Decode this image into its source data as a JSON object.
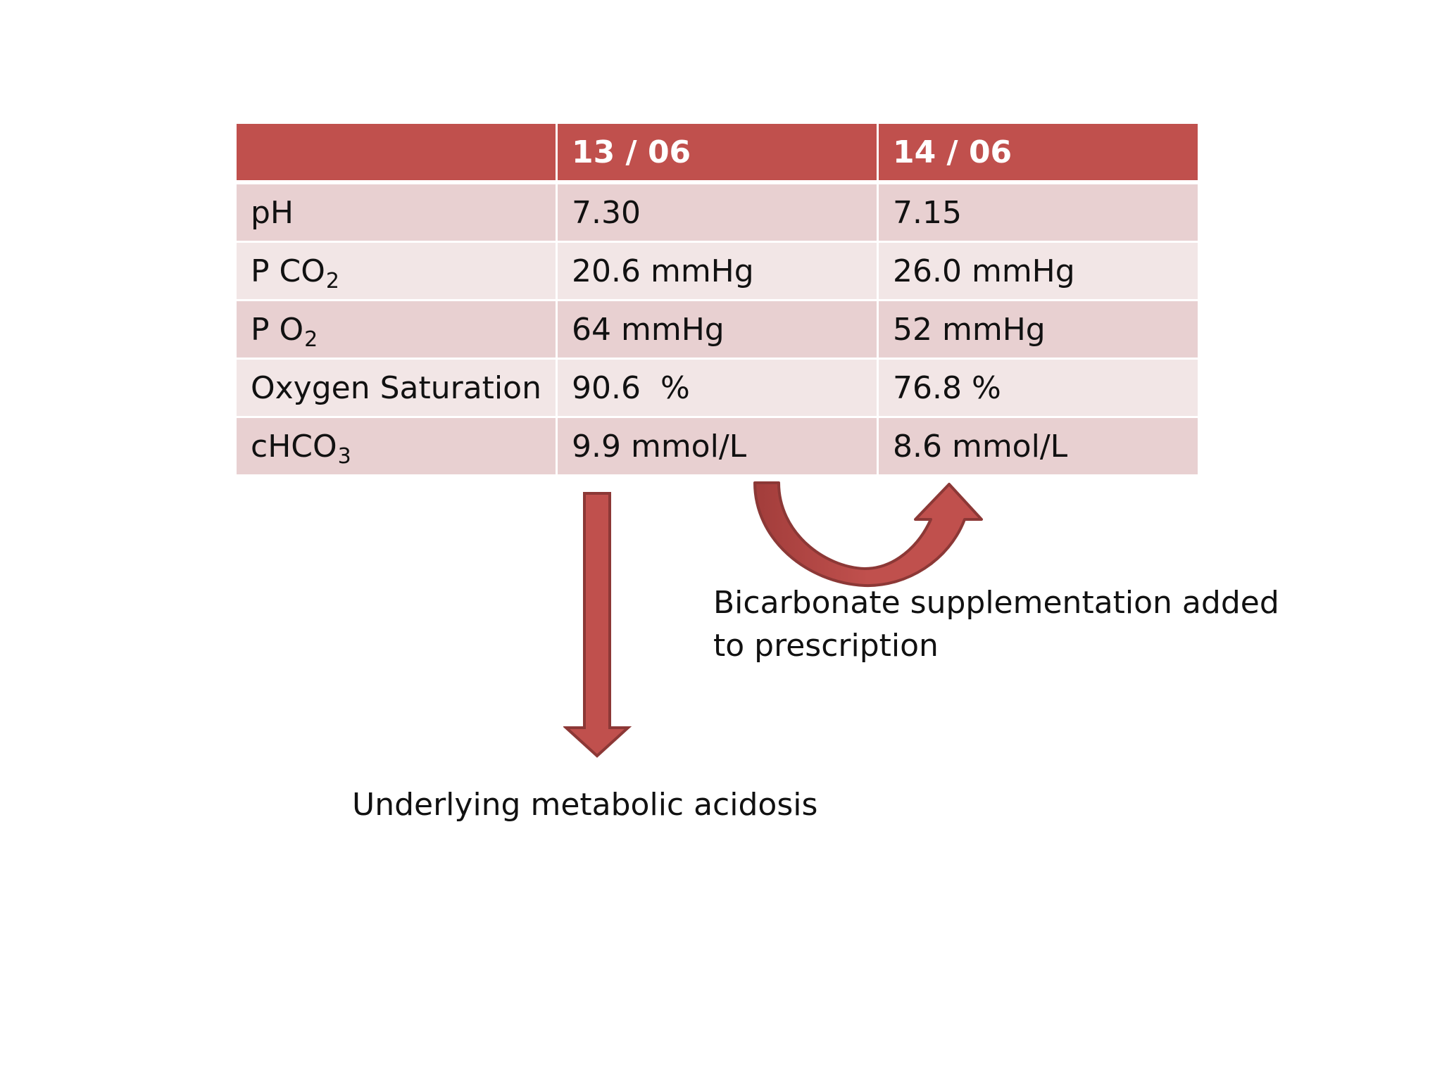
{
  "table": {
    "header": {
      "col0": "",
      "col1": "13 / 06",
      "col2": "14 / 06"
    },
    "rows": [
      {
        "label_main": "pH",
        "label_sub": "",
        "v1": "7.30",
        "v2": "7.15"
      },
      {
        "label_main": "P CO",
        "label_sub": "2",
        "v1": "20.6 mmHg",
        "v2": "26.0 mmHg"
      },
      {
        "label_main": "P O",
        "label_sub": "2",
        "v1": "64 mmHg",
        "v2": "52 mmHg"
      },
      {
        "label_main": "Oxygen Saturation",
        "label_sub": "",
        "v1": "90.6  %",
        "v2": "76.8 %"
      },
      {
        "label_main": "cHCO",
        "label_sub": "3",
        "v1": "9.9 mmol/L",
        "v2": "8.6 mmol/L"
      }
    ]
  },
  "annotations": {
    "acidosis": "Underlying metabolic acidosis",
    "bicarb_line1": "Bicarbonate supplementation added",
    "bicarb_line2": "to prescription"
  },
  "colors": {
    "header_fill": "#c0504d",
    "row_odd": "#e8d0d1",
    "row_even": "#f2e6e6",
    "arrow_fill": "#c0504d",
    "arrow_stroke": "#8c3836"
  },
  "icons": {
    "down_arrow": "down-arrow-icon",
    "curved_arrow": "curved-up-arrow-icon"
  }
}
